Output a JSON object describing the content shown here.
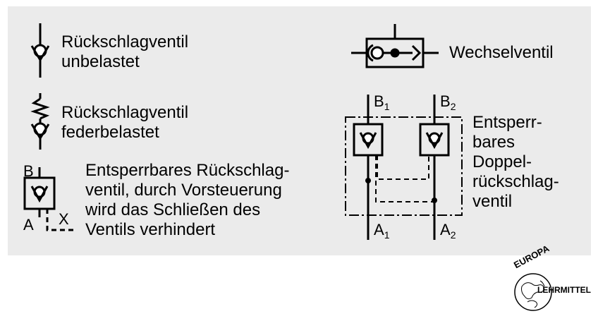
{
  "symbols": {
    "check_valve_unloaded": {
      "line1": "Rückschlagventil",
      "line2": "unbelastet"
    },
    "check_valve_spring": {
      "line1": "Rückschlagventil",
      "line2": "federbelastet"
    },
    "pilot_check_valve": {
      "port_b": "B",
      "port_a": "A",
      "port_x": "X",
      "line1": "Entsperrbares Rückschlag-",
      "line2": "ventil, durch Vorsteuerung",
      "line3": "wird das Schließen des",
      "line4": "Ventils verhindert"
    },
    "shuttle_valve": {
      "label": "Wechselventil"
    },
    "double_pilot_check_valve": {
      "port_b": "B",
      "port_a": "A",
      "sub_1": "1",
      "sub_2": "2",
      "line1": "Entsperr-",
      "line2": "bares",
      "line3": "Doppel-",
      "line4": "rückschlag-",
      "line5": "ventil"
    }
  },
  "logo": {
    "top_text": "EUROPA",
    "right_text": "LEHRMITTEL"
  },
  "colors": {
    "panel": "#ebebeb",
    "ink": "#000000"
  }
}
